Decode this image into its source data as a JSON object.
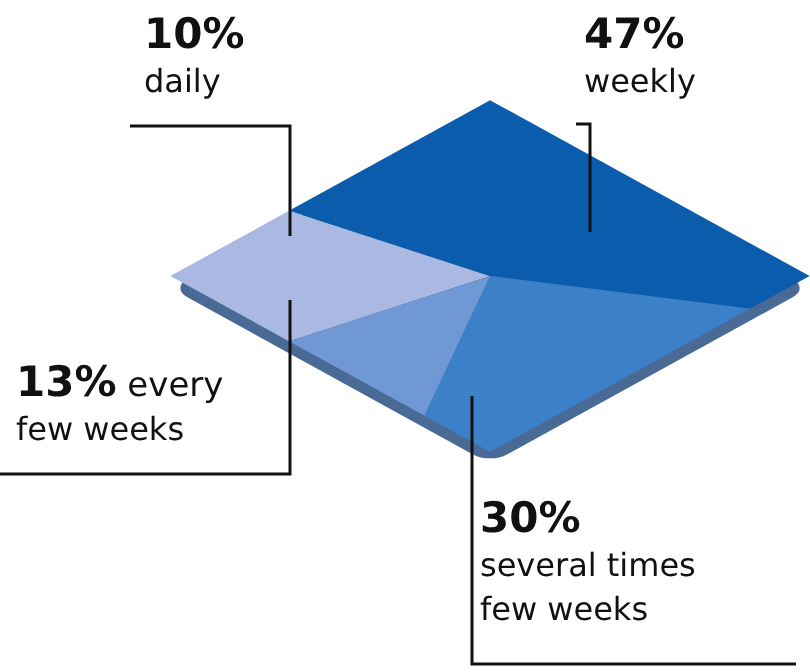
{
  "chart_data": {
    "type": "pie",
    "categories": [
      "daily",
      "weekly",
      "several times few weeks",
      "every few weeks"
    ],
    "values": [
      10,
      47,
      30,
      13
    ],
    "colors": [
      "#a9b9e2",
      "#0b5cad",
      "#3c80c9",
      "#7098d4"
    ],
    "value_labels": [
      "10%",
      "47%",
      "30%",
      "13%"
    ]
  }
}
